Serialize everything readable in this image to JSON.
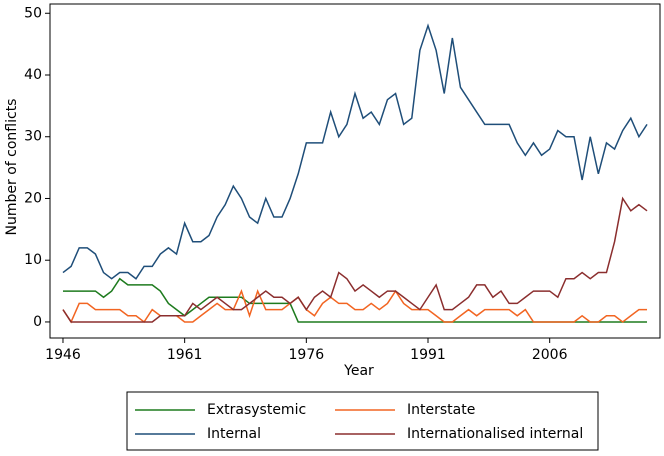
{
  "chart_data": {
    "type": "line",
    "x_label": "Year",
    "y_label": "Number of conflicts",
    "x": [
      1946,
      1947,
      1948,
      1949,
      1950,
      1951,
      1952,
      1953,
      1954,
      1955,
      1956,
      1957,
      1958,
      1959,
      1960,
      1961,
      1962,
      1963,
      1964,
      1965,
      1966,
      1967,
      1968,
      1969,
      1970,
      1971,
      1972,
      1973,
      1974,
      1975,
      1976,
      1977,
      1978,
      1979,
      1980,
      1981,
      1982,
      1983,
      1984,
      1985,
      1986,
      1987,
      1988,
      1989,
      1990,
      1991,
      1992,
      1993,
      1994,
      1995,
      1996,
      1997,
      1998,
      1999,
      2000,
      2001,
      2002,
      2003,
      2004,
      2005,
      2006,
      2007,
      2008,
      2009,
      2010,
      2011,
      2012,
      2013,
      2014,
      2015,
      2016,
      2017,
      2018
    ],
    "series": [
      {
        "name": "Extrasystemic",
        "color": "#1e7b1e",
        "values": [
          5,
          5,
          5,
          5,
          5,
          4,
          5,
          7,
          6,
          6,
          6,
          6,
          5,
          3,
          2,
          1,
          2,
          3,
          4,
          4,
          4,
          4,
          4,
          3,
          3,
          3,
          3,
          3,
          3,
          0,
          0,
          0,
          0,
          0,
          0,
          0,
          0,
          0,
          0,
          0,
          0,
          0,
          0,
          0,
          0,
          0,
          0,
          0,
          0,
          0,
          0,
          0,
          0,
          0,
          0,
          0,
          0,
          0,
          0,
          0,
          0,
          0,
          0,
          0,
          0,
          0,
          0,
          0,
          0,
          0,
          0,
          0,
          0
        ]
      },
      {
        "name": "Interstate",
        "color": "#f26522",
        "values": [
          2,
          0,
          3,
          3,
          2,
          2,
          2,
          2,
          1,
          1,
          0,
          2,
          1,
          1,
          1,
          0,
          0,
          1,
          2,
          3,
          2,
          2,
          5,
          1,
          5,
          2,
          2,
          2,
          3,
          4,
          2,
          1,
          3,
          4,
          3,
          3,
          2,
          2,
          3,
          2,
          3,
          5,
          3,
          2,
          2,
          2,
          1,
          0,
          0,
          1,
          2,
          1,
          2,
          2,
          2,
          2,
          1,
          2,
          0,
          0,
          0,
          0,
          0,
          0,
          1,
          0,
          0,
          1,
          1,
          0,
          1,
          2,
          2
        ]
      },
      {
        "name": "Internal",
        "color": "#1f4e79",
        "values": [
          8,
          9,
          12,
          12,
          11,
          8,
          7,
          8,
          8,
          7,
          9,
          9,
          11,
          12,
          11,
          16,
          13,
          13,
          14,
          17,
          19,
          22,
          20,
          17,
          16,
          20,
          17,
          17,
          20,
          24,
          29,
          29,
          29,
          34,
          30,
          32,
          37,
          33,
          34,
          32,
          36,
          37,
          32,
          33,
          44,
          48,
          44,
          37,
          46,
          38,
          36,
          34,
          32,
          32,
          32,
          32,
          29,
          27,
          29,
          27,
          28,
          31,
          30,
          30,
          23,
          30,
          24,
          29,
          28,
          31,
          33,
          30,
          32
        ]
      },
      {
        "name": "Internationalised internal",
        "color": "#8b2e2e",
        "values": [
          2,
          0,
          0,
          0,
          0,
          0,
          0,
          0,
          0,
          0,
          0,
          0,
          1,
          1,
          1,
          1,
          3,
          2,
          3,
          4,
          3,
          2,
          2,
          3,
          4,
          5,
          4,
          4,
          3,
          4,
          2,
          4,
          5,
          4,
          8,
          7,
          5,
          6,
          5,
          4,
          5,
          5,
          4,
          3,
          2,
          4,
          6,
          2,
          2,
          3,
          4,
          6,
          6,
          4,
          5,
          3,
          3,
          4,
          5,
          5,
          5,
          4,
          7,
          7,
          8,
          7,
          8,
          8,
          13,
          20,
          18,
          19,
          18
        ]
      }
    ],
    "xlim": [
      1944.4,
      2019.6
    ],
    "ylim": [
      -2.6,
      51.5
    ],
    "xticks": [
      1946,
      1961,
      1976,
      1991,
      2006
    ],
    "yticks": [
      0,
      10,
      20,
      30,
      40,
      50
    ]
  }
}
